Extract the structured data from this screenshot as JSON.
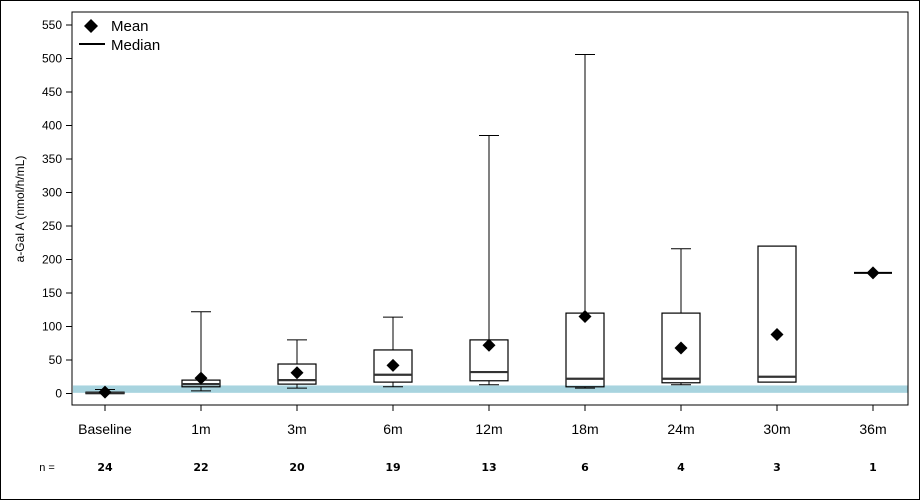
{
  "chart_data": {
    "type": "box",
    "title": "",
    "xlabel": "",
    "ylabel": "a-Gal A (nmol/h/mL)",
    "ylim": [
      -20,
      570
    ],
    "yticks": [
      0,
      50,
      100,
      150,
      200,
      250,
      300,
      350,
      400,
      450,
      500,
      550
    ],
    "grid": false,
    "legend": {
      "position": "top-left",
      "entries": [
        {
          "label": "Mean",
          "marker": "diamond"
        },
        {
          "label": "Median",
          "marker": "line"
        }
      ]
    },
    "reference_band": {
      "y_low": 1,
      "y_high": 12,
      "color": "#a8d4df",
      "description": "normal range band"
    },
    "categories": [
      "Baseline",
      "1m",
      "3m",
      "6m",
      "12m",
      "18m",
      "24m",
      "30m",
      "36m"
    ],
    "n_prefix": "n =",
    "n": [
      24,
      22,
      20,
      19,
      13,
      6,
      4,
      3,
      1
    ],
    "series": [
      {
        "category": "Baseline",
        "min": 0,
        "q1": 0,
        "median": 1,
        "q3": 2,
        "max": 6,
        "mean": 2
      },
      {
        "category": "1m",
        "min": 4,
        "q1": 10,
        "median": 14,
        "q3": 20,
        "max": 122,
        "mean": 23
      },
      {
        "category": "3m",
        "min": 8,
        "q1": 14,
        "median": 20,
        "q3": 44,
        "max": 80,
        "mean": 31
      },
      {
        "category": "6m",
        "min": 10,
        "q1": 17,
        "median": 28,
        "q3": 65,
        "max": 114,
        "mean": 42
      },
      {
        "category": "12m",
        "min": 13,
        "q1": 19,
        "median": 32,
        "q3": 80,
        "max": 385,
        "mean": 72
      },
      {
        "category": "18m",
        "min": 8,
        "q1": 10,
        "median": 22,
        "q3": 120,
        "max": 506,
        "mean": 115
      },
      {
        "category": "24m",
        "min": 13,
        "q1": 16,
        "median": 22,
        "q3": 120,
        "max": 216,
        "mean": 68
      },
      {
        "category": "30m",
        "min": 17,
        "q1": 17,
        "median": 25,
        "q3": 220,
        "max": 220,
        "mean": 88
      },
      {
        "category": "36m",
        "min": 180,
        "q1": 180,
        "median": 180,
        "q3": 180,
        "max": 180,
        "mean": 180
      }
    ]
  },
  "colors": {
    "band": "#a8d4df",
    "stroke": "#000000",
    "median": "#333333"
  }
}
